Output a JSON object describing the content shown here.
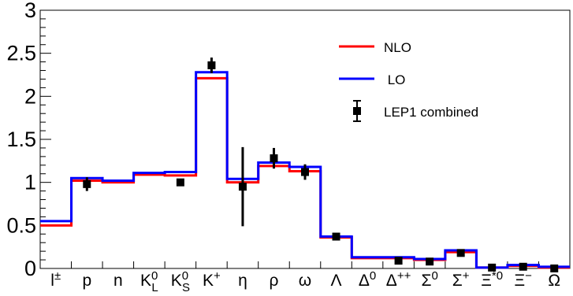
{
  "chart_data": {
    "type": "line",
    "ylim": [
      0,
      3
    ],
    "y_ticks": [
      "0",
      "0.5",
      "1",
      "1.5",
      "2",
      "2.5",
      "3"
    ],
    "categories": [
      "l±",
      "p",
      "n",
      "K0L",
      "K0S",
      "K+",
      "η",
      "ρ",
      "ω",
      "Λ",
      "Δ0",
      "Δ++",
      "Σ0",
      "Σ+",
      "Ξ*0",
      "Ξ−",
      "Ω"
    ],
    "category_labels": [
      {
        "base": "l",
        "sup": "±",
        "sub": ""
      },
      {
        "base": "p",
        "sup": "",
        "sub": ""
      },
      {
        "base": "n",
        "sup": "",
        "sub": ""
      },
      {
        "base": "K",
        "sup": "0",
        "sub": "L"
      },
      {
        "base": "K",
        "sup": "0",
        "sub": "S"
      },
      {
        "base": "K",
        "sup": "+",
        "sub": ""
      },
      {
        "base": "η",
        "sup": "",
        "sub": ""
      },
      {
        "base": "ρ",
        "sup": "",
        "sub": ""
      },
      {
        "base": "ω",
        "sup": "",
        "sub": ""
      },
      {
        "base": "Λ",
        "sup": "",
        "sub": ""
      },
      {
        "base": "Δ",
        "sup": "0",
        "sub": ""
      },
      {
        "base": "Δ",
        "sup": "++",
        "sub": ""
      },
      {
        "base": "Σ",
        "sup": "0",
        "sub": ""
      },
      {
        "base": "Σ",
        "sup": "+",
        "sub": ""
      },
      {
        "base": "Ξ",
        "sup": "*0",
        "sub": ""
      },
      {
        "base": "Ξ",
        "sup": "−",
        "sub": ""
      },
      {
        "base": "Ω",
        "sup": "",
        "sub": ""
      }
    ],
    "series": [
      {
        "name": "NLO",
        "color": "#ff0000",
        "style": "step",
        "values": [
          0.5,
          1.02,
          1.0,
          1.09,
          1.08,
          2.21,
          1.0,
          1.19,
          1.13,
          0.36,
          0.12,
          0.12,
          0.1,
          0.19,
          0.01,
          0.03,
          0.01
        ]
      },
      {
        "name": " LO",
        "color": "#0000ff",
        "style": "step",
        "values": [
          0.55,
          1.05,
          1.02,
          1.11,
          1.12,
          2.28,
          1.04,
          1.23,
          1.18,
          0.37,
          0.13,
          0.13,
          0.11,
          0.21,
          0.01,
          0.04,
          0.02
        ]
      },
      {
        "name": "LEP1 combined",
        "color": "#000000",
        "style": "points",
        "values": [
          null,
          0.98,
          null,
          null,
          1.0,
          2.36,
          0.95,
          1.28,
          1.12,
          0.37,
          null,
          0.09,
          0.08,
          0.18,
          0.01,
          0.02,
          0.0
        ],
        "errors": [
          null,
          0.08,
          null,
          null,
          0.02,
          0.09,
          0.46,
          0.12,
          0.09,
          0.02,
          null,
          0.01,
          0.01,
          0.02,
          0.005,
          0.01,
          0.005
        ]
      }
    ],
    "legend_position": "top-right",
    "grid": false
  }
}
